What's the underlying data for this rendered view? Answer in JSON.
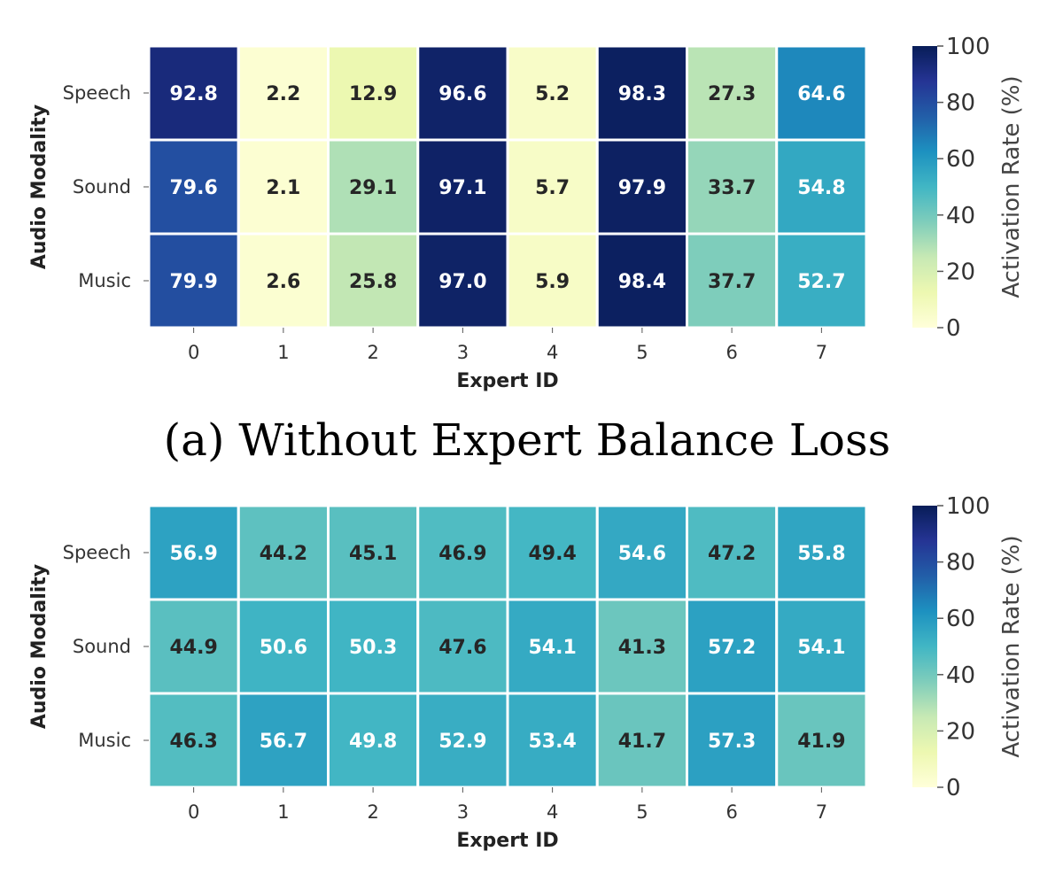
{
  "chart_data": [
    {
      "type": "heatmap",
      "xlabel": "Expert ID",
      "ylabel": "Audio Modality",
      "x_categories": [
        "0",
        "1",
        "2",
        "3",
        "4",
        "5",
        "6",
        "7"
      ],
      "y_categories": [
        "Speech",
        "Sound",
        "Music"
      ],
      "values": [
        [
          92.8,
          2.2,
          12.9,
          96.6,
          5.2,
          98.3,
          27.3,
          64.6
        ],
        [
          79.6,
          2.1,
          29.1,
          97.1,
          5.7,
          97.9,
          33.7,
          54.8
        ],
        [
          79.9,
          2.6,
          25.8,
          97.0,
          5.9,
          98.4,
          37.7,
          52.7
        ]
      ],
      "value_labels": [
        [
          "92.8",
          "2.2",
          "12.9",
          "96.6",
          "5.2",
          "98.3",
          "27.3",
          "64.6"
        ],
        [
          "79.6",
          "2.1",
          "29.1",
          "97.1",
          "5.7",
          "97.9",
          "33.7",
          "54.8"
        ],
        [
          "79.9",
          "2.6",
          "25.8",
          "97.0",
          "5.9",
          "98.4",
          "37.7",
          "52.7"
        ]
      ],
      "colorbar": {
        "label": "Activation Rate (%)",
        "range": [
          0,
          100
        ],
        "ticks": [
          "0",
          "20",
          "40",
          "60",
          "80",
          "100"
        ],
        "colormap": "YlGnBu"
      },
      "caption": "(a) Without Expert Balance Loss"
    },
    {
      "type": "heatmap",
      "xlabel": "Expert ID",
      "ylabel": "Audio Modality",
      "x_categories": [
        "0",
        "1",
        "2",
        "3",
        "4",
        "5",
        "6",
        "7"
      ],
      "y_categories": [
        "Speech",
        "Sound",
        "Music"
      ],
      "values": [
        [
          56.9,
          44.2,
          45.1,
          46.9,
          49.4,
          54.6,
          47.2,
          55.8
        ],
        [
          44.9,
          50.6,
          50.3,
          47.6,
          54.1,
          41.3,
          57.2,
          54.1
        ],
        [
          46.3,
          56.7,
          49.8,
          52.9,
          53.4,
          41.7,
          57.3,
          41.9
        ]
      ],
      "value_labels": [
        [
          "56.9",
          "44.2",
          "45.1",
          "46.9",
          "49.4",
          "54.6",
          "47.2",
          "55.8"
        ],
        [
          "44.9",
          "50.6",
          "50.3",
          "47.6",
          "54.1",
          "41.3",
          "57.2",
          "54.1"
        ],
        [
          "46.3",
          "56.7",
          "49.8",
          "52.9",
          "53.4",
          "41.7",
          "57.3",
          "41.9"
        ]
      ],
      "colorbar": {
        "label": "Activation Rate (%)",
        "range": [
          0,
          100
        ],
        "ticks": [
          "0",
          "20",
          "40",
          "60",
          "80",
          "100"
        ],
        "colormap": "YlGnBu"
      },
      "caption": ""
    }
  ]
}
